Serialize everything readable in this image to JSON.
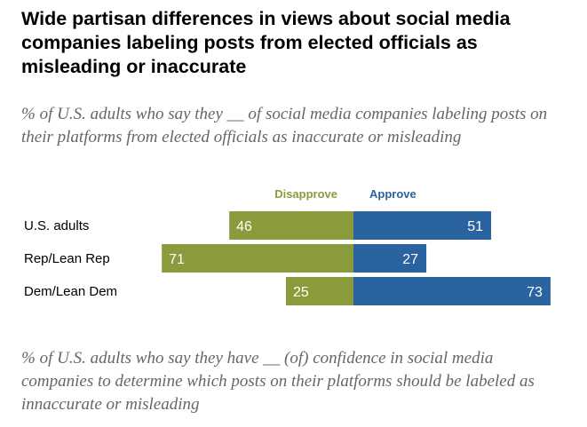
{
  "title": "Wide partisan differences in views about social media companies labeling posts from elected officials as misleading or inaccurate",
  "subtitle": "% of U.S. adults who say they __ of social media companies labeling posts on their platforms from elected officials as inaccurate or misleading",
  "subtitle2": "% of U.S. adults who say they have __ (of) confidence in social media companies to determine which posts on their platforms should be labeled as innaccurate or misleading",
  "colors": {
    "disapprove": "#8a9b3b",
    "approve": "#2b62a0"
  },
  "chart_data": {
    "type": "bar",
    "orientation": "horizontal-diverging",
    "categories": [
      "U.S. adults",
      "Rep/Lean Rep",
      "Dem/Lean Dem"
    ],
    "series": [
      {
        "name": "Disapprove",
        "values": [
          46,
          71,
          25
        ]
      },
      {
        "name": "Approve",
        "values": [
          51,
          27,
          73
        ]
      }
    ],
    "xlim": [
      -75,
      75
    ],
    "grid": false,
    "legend": "top"
  }
}
